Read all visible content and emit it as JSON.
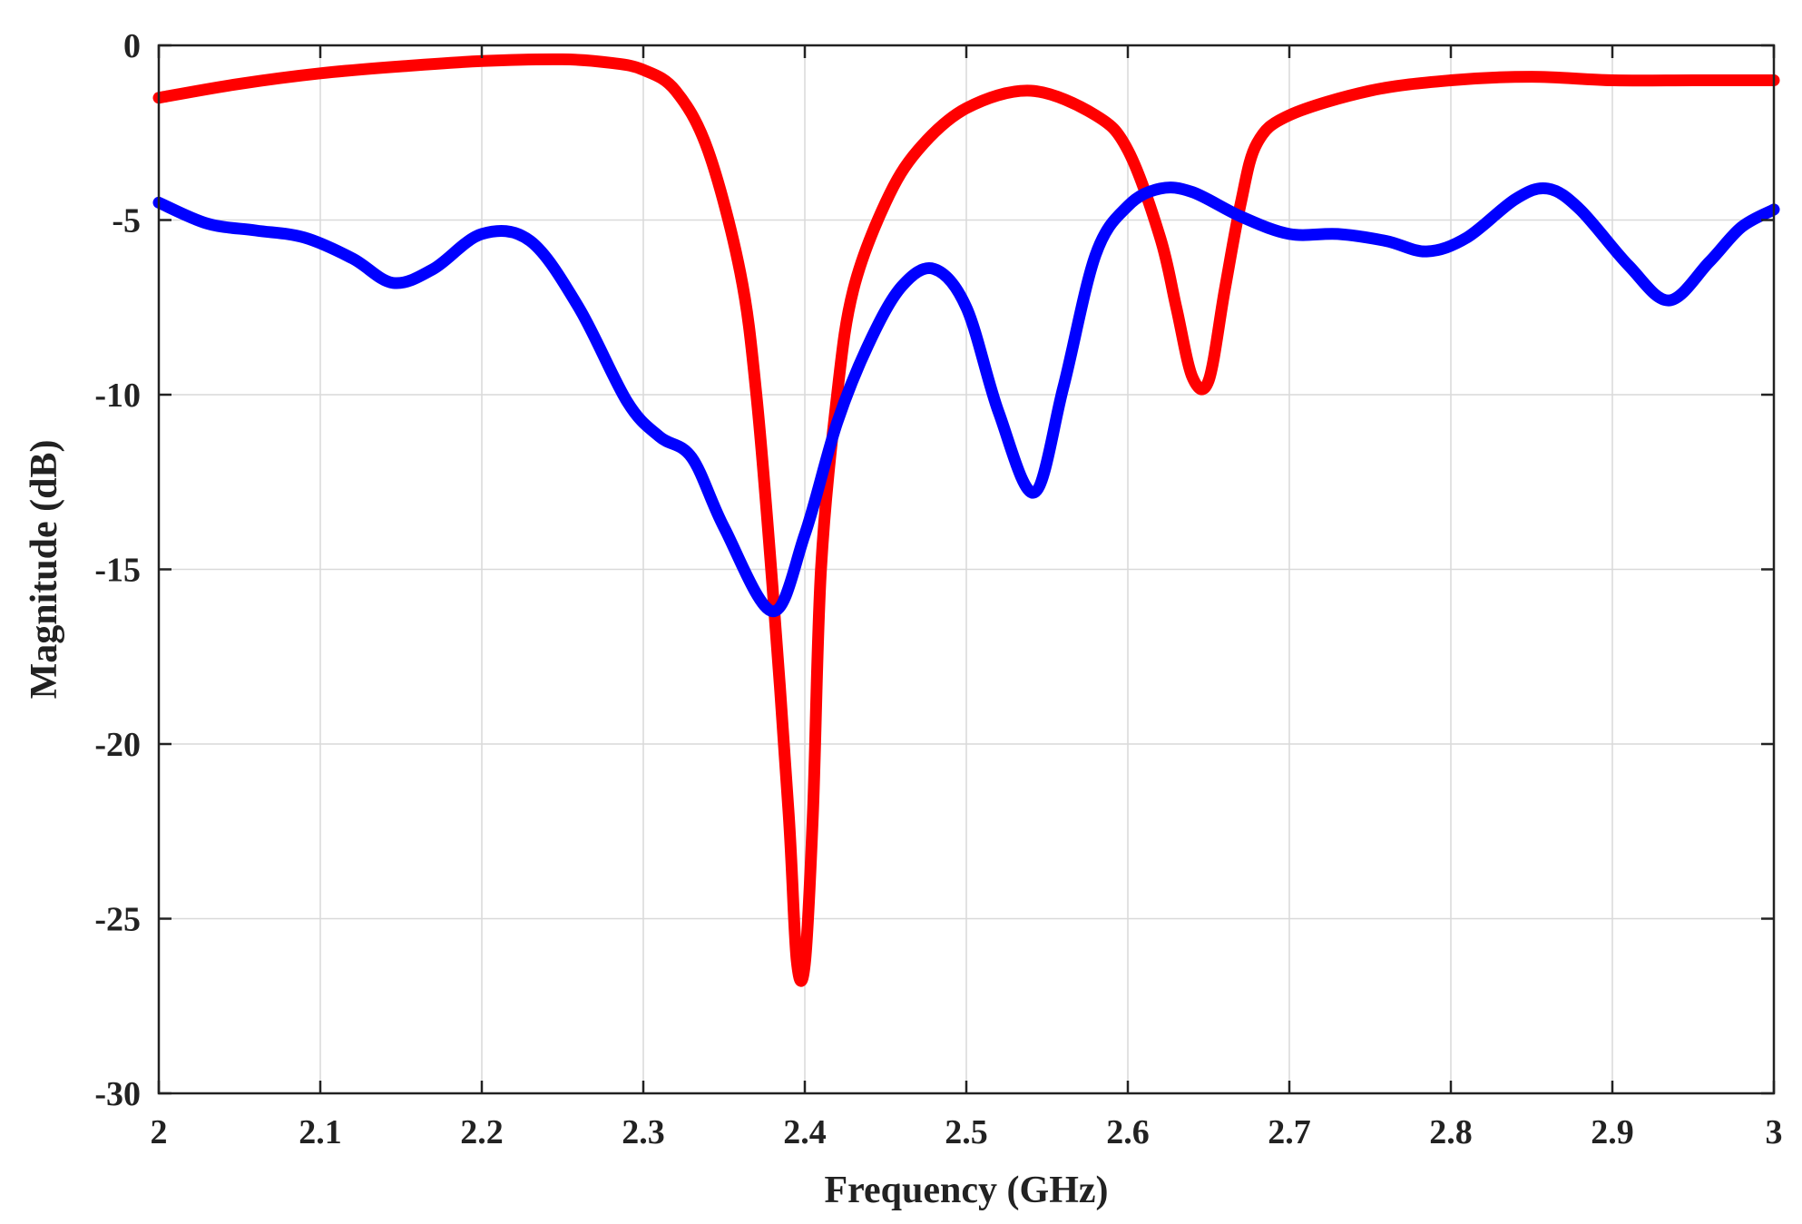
{
  "chart_data": {
    "type": "line",
    "xlabel": "Frequency (GHz)",
    "ylabel": "Magnitude (dB)",
    "xlim": [
      2,
      3
    ],
    "ylim": [
      -30,
      0
    ],
    "xticks": [
      2,
      2.1,
      2.2,
      2.3,
      2.4,
      2.5,
      2.6,
      2.7,
      2.8,
      2.9,
      3
    ],
    "xtick_labels": [
      "2",
      "2.1",
      "2.2",
      "2.3",
      "2.4",
      "2.5",
      "2.6",
      "2.7",
      "2.8",
      "2.9",
      "3"
    ],
    "yticks": [
      0,
      -5,
      -10,
      -15,
      -20,
      -25,
      -30
    ],
    "ytick_labels": [
      "0",
      "-5",
      "-10",
      "-15",
      "-20",
      "-25",
      "-30"
    ],
    "grid": true,
    "series": [
      {
        "color": "#ff0000",
        "x": [
          2.0,
          2.05,
          2.1,
          2.15,
          2.2,
          2.25,
          2.28,
          2.3,
          2.32,
          2.34,
          2.36,
          2.37,
          2.38,
          2.39,
          2.395,
          2.4,
          2.405,
          2.41,
          2.42,
          2.43,
          2.45,
          2.47,
          2.5,
          2.54,
          2.58,
          2.6,
          2.62,
          2.63,
          2.64,
          2.65,
          2.66,
          2.67,
          2.68,
          2.7,
          2.75,
          2.8,
          2.85,
          2.9,
          2.95,
          3.0
        ],
        "y": [
          -1.5,
          -1.1,
          -0.8,
          -0.6,
          -0.45,
          -0.4,
          -0.5,
          -0.7,
          -1.3,
          -3.0,
          -6.5,
          -10.0,
          -15.5,
          -22.0,
          -26.2,
          -26.3,
          -22.0,
          -15.0,
          -10.0,
          -7.0,
          -4.5,
          -3.0,
          -1.8,
          -1.3,
          -2.0,
          -3.0,
          -5.5,
          -7.5,
          -9.5,
          -9.6,
          -7.0,
          -4.5,
          -2.8,
          -2.0,
          -1.3,
          -1.0,
          -0.9,
          -1.0,
          -1.0,
          -1.0
        ]
      },
      {
        "color": "#0000ff",
        "x": [
          2.0,
          2.03,
          2.06,
          2.09,
          2.12,
          2.145,
          2.17,
          2.2,
          2.23,
          2.26,
          2.29,
          2.31,
          2.33,
          2.35,
          2.38,
          2.4,
          2.42,
          2.44,
          2.46,
          2.48,
          2.5,
          2.52,
          2.542,
          2.56,
          2.58,
          2.6,
          2.62,
          2.64,
          2.67,
          2.7,
          2.73,
          2.76,
          2.785,
          2.81,
          2.84,
          2.86,
          2.88,
          2.91,
          2.935,
          2.96,
          2.98,
          3.0
        ],
        "y": [
          -4.5,
          -5.1,
          -5.3,
          -5.5,
          -6.1,
          -6.8,
          -6.4,
          -5.4,
          -5.6,
          -7.5,
          -10.2,
          -11.2,
          -11.8,
          -13.8,
          -16.2,
          -14.0,
          -10.8,
          -8.5,
          -6.9,
          -6.4,
          -7.5,
          -10.5,
          -12.8,
          -9.8,
          -6.0,
          -4.6,
          -4.1,
          -4.2,
          -4.9,
          -5.4,
          -5.4,
          -5.6,
          -5.9,
          -5.5,
          -4.4,
          -4.1,
          -4.7,
          -6.3,
          -7.3,
          -6.2,
          -5.2,
          -4.7
        ]
      }
    ]
  }
}
